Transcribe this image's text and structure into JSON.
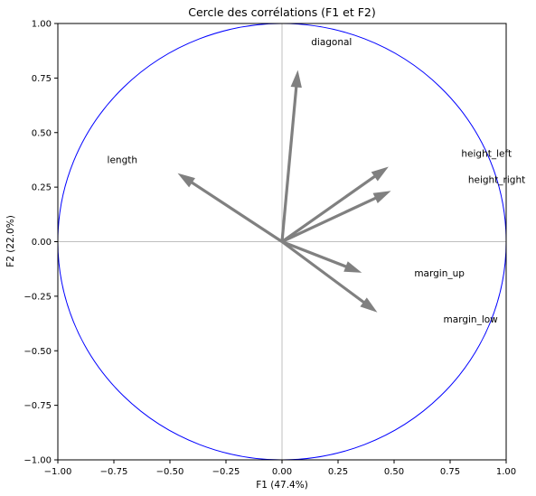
{
  "chart_data": {
    "type": "scatter",
    "title": "Cercle des corrélations (F1 et F2)",
    "xlabel": "F1 (47.4%)",
    "ylabel": "F2 (22.0%)",
    "xlim": [
      -1.0,
      1.0
    ],
    "ylim": [
      -1.0,
      1.0
    ],
    "xticks": [
      "−1.00",
      "−0.75",
      "−0.50",
      "−0.25",
      "0.00",
      "0.25",
      "0.50",
      "0.75",
      "1.00"
    ],
    "yticks": [
      "−1.00",
      "−0.75",
      "−0.50",
      "−0.25",
      "0.00",
      "0.25",
      "0.50",
      "0.75",
      "1.00"
    ],
    "grid": false,
    "circle_color": "#0000ff",
    "arrow_color": "#808080",
    "reference_line_color": "#bfbfbf",
    "variables": [
      {
        "name": "diagonal",
        "x": 0.07,
        "y": 0.78,
        "label_x": 0.13,
        "label_y": 0.9
      },
      {
        "name": "length",
        "x": -0.46,
        "y": 0.31,
        "label_x": -0.78,
        "label_y": 0.36
      },
      {
        "name": "height_left",
        "x": 0.47,
        "y": 0.34,
        "label_x": 0.8,
        "label_y": 0.39
      },
      {
        "name": "height_right",
        "x": 0.48,
        "y": 0.23,
        "label_x": 0.83,
        "label_y": 0.27
      },
      {
        "name": "margin_up",
        "x": 0.35,
        "y": -0.14,
        "label_x": 0.59,
        "label_y": -0.16
      },
      {
        "name": "margin_low",
        "x": 0.42,
        "y": -0.32,
        "label_x": 0.72,
        "label_y": -0.37
      }
    ]
  }
}
